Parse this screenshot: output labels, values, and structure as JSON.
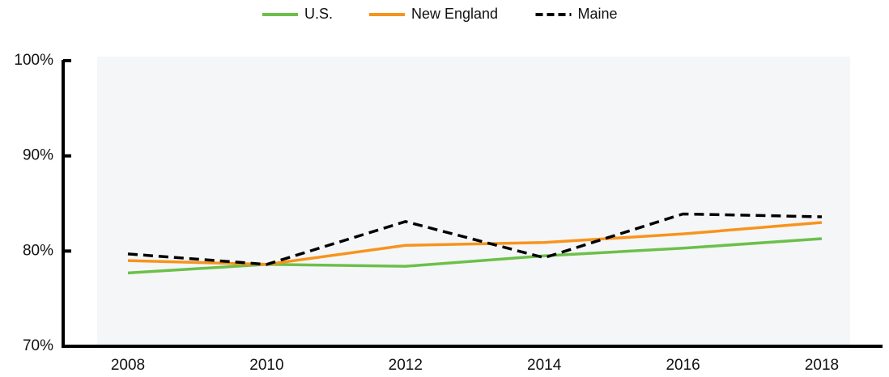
{
  "chart_data": {
    "type": "line",
    "categories": [
      "2008",
      "2010",
      "2012",
      "2014",
      "2016",
      "2018"
    ],
    "series": [
      {
        "name": "U.S.",
        "color": "#6cc04a",
        "values": [
          77.7,
          78.6,
          78.4,
          79.5,
          80.3,
          81.3
        ]
      },
      {
        "name": "New England",
        "color": "#f7941d",
        "values": [
          79.0,
          78.6,
          80.6,
          80.9,
          81.8,
          83.0
        ]
      },
      {
        "name": "Maine",
        "color": "#000000",
        "dashed": true,
        "values": [
          79.7,
          78.6,
          83.1,
          79.3,
          83.9,
          83.6
        ]
      }
    ],
    "ylim": [
      70,
      100
    ],
    "yticks": [
      {
        "value": 70,
        "label": "70%"
      },
      {
        "value": 80,
        "label": "80%"
      },
      {
        "value": 90,
        "label": "90%"
      },
      {
        "value": 100,
        "label": "100%"
      }
    ],
    "legend": "top"
  }
}
